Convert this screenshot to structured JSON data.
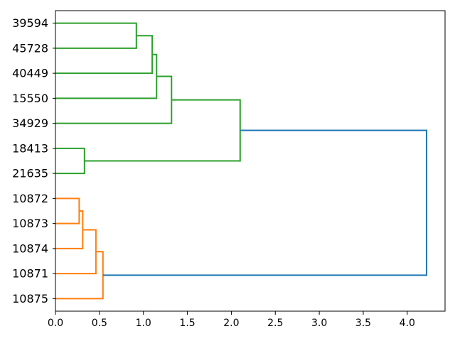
{
  "figure": {
    "background": "#ffffff"
  },
  "chart_data": {
    "type": "dendrogram",
    "orientation": "left_labels_horizontal_distance_x",
    "title": "",
    "xlabel": "",
    "ylabel": "",
    "grid": false,
    "leaves": [
      "39594",
      "45728",
      "40449",
      "15550",
      "34929",
      "18413",
      "21635",
      "10872",
      "10873",
      "10874",
      "10871",
      "10875"
    ],
    "links": [
      {
        "id": "A",
        "children": [
          "39594",
          "45728"
        ],
        "distance": 0.92,
        "color": "green"
      },
      {
        "id": "B",
        "children": [
          "A",
          "40449"
        ],
        "distance": 1.1,
        "color": "green"
      },
      {
        "id": "C",
        "children": [
          "B",
          "15550"
        ],
        "distance": 1.15,
        "color": "green"
      },
      {
        "id": "D",
        "children": [
          "C",
          "34929"
        ],
        "distance": 1.32,
        "color": "green"
      },
      {
        "id": "E",
        "children": [
          "18413",
          "21635"
        ],
        "distance": 0.33,
        "color": "green"
      },
      {
        "id": "F",
        "children": [
          "D",
          "E"
        ],
        "distance": 2.1,
        "color": "green"
      },
      {
        "id": "G",
        "children": [
          "10872",
          "10873"
        ],
        "distance": 0.27,
        "color": "orange"
      },
      {
        "id": "H",
        "children": [
          "G",
          "10874"
        ],
        "distance": 0.31,
        "color": "orange"
      },
      {
        "id": "I",
        "children": [
          "H",
          "10871"
        ],
        "distance": 0.46,
        "color": "orange"
      },
      {
        "id": "J",
        "children": [
          "I",
          "10875"
        ],
        "distance": 0.54,
        "color": "orange"
      },
      {
        "id": "K",
        "children": [
          "F",
          "J"
        ],
        "distance": 4.22,
        "color": "blue"
      }
    ],
    "x_ticks": [
      0.0,
      0.5,
      1.0,
      1.5,
      2.0,
      2.5,
      3.0,
      3.5,
      4.0
    ],
    "x_tick_labels": [
      "0.0",
      "0.5",
      "1.0",
      "1.5",
      "2.0",
      "2.5",
      "3.0",
      "3.5",
      "4.0"
    ],
    "xlim": [
      0,
      4.43
    ],
    "colors": {
      "green": "#2ca02c",
      "orange": "#ff7f0e",
      "blue": "#1f77b4",
      "axis": "#000000"
    }
  }
}
